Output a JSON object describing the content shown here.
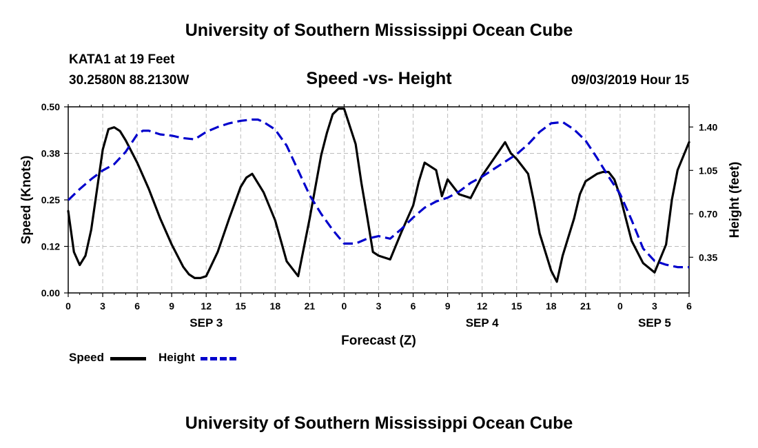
{
  "page": {
    "top_title": "University of Southern Mississippi Ocean Cube",
    "bottom_title": "University of Southern Mississippi Ocean Cube",
    "station": "KATA1 at 19 Feet",
    "location": "30.2580N 88.2130W",
    "chart_title": "Speed -vs- Height",
    "timestamp": "09/03/2019 Hour 15"
  },
  "legend": {
    "speed_label": "Speed",
    "height_label": "Height"
  },
  "colors": {
    "speed_line": "#000000",
    "height_line": "#0000cc",
    "grid": "#bbbbbb"
  },
  "chart_data": {
    "type": "line",
    "title": "Speed -vs- Height",
    "xlabel": "Forecast (Z)",
    "ylabel": "Speed (Knots)",
    "y2label": "Height (feet)",
    "xlim": [
      0,
      54
    ],
    "ylim": [
      0,
      0.5
    ],
    "y2lim": [
      0.0625,
      1.5625
    ],
    "x_ticks": [
      0,
      3,
      6,
      9,
      12,
      15,
      18,
      21,
      24,
      27,
      30,
      33,
      36,
      39,
      42,
      45,
      48,
      51,
      54
    ],
    "x_tick_labels": [
      "0",
      "3",
      "6",
      "9",
      "12",
      "15",
      "18",
      "21",
      "0",
      "3",
      "6",
      "9",
      "12",
      "15",
      "18",
      "21",
      "0",
      "3",
      "6"
    ],
    "y_ticks": [
      0,
      0.125,
      0.25,
      0.375,
      0.5
    ],
    "y_tick_labels": [
      "0.00",
      "0.12",
      "0.25",
      "0.38",
      "0.50"
    ],
    "y2_ticks": [
      0.35,
      0.7,
      1.05,
      1.4
    ],
    "y2_tick_labels": [
      "0.35",
      "0.70",
      "1.05",
      "1.40"
    ],
    "day_labels": [
      {
        "x": 12,
        "label": "SEP 3"
      },
      {
        "x": 36,
        "label": "SEP 4"
      },
      {
        "x": 51,
        "label": "SEP 5"
      }
    ],
    "series": [
      {
        "name": "Speed",
        "axis": "left",
        "style": "solid",
        "x": [
          0,
          0.5,
          1,
          1.5,
          2,
          3,
          3.5,
          4,
          4.5,
          5,
          6,
          7,
          8,
          9,
          10,
          10.5,
          11,
          11.5,
          12,
          13,
          14,
          15,
          15.5,
          16,
          17,
          18,
          18.5,
          19,
          20,
          21,
          22,
          22.5,
          23,
          23.5,
          24,
          25,
          25.5,
          26,
          26.5,
          27,
          28,
          29,
          30,
          30.5,
          31,
          32,
          32.5,
          33,
          34,
          35,
          36,
          37,
          38,
          38.5,
          39,
          40,
          40.5,
          41,
          42,
          42.5,
          43,
          44,
          44.5,
          45,
          46,
          46.5,
          47,
          47.5,
          48,
          48.5,
          49,
          50,
          51,
          52,
          52.5,
          53,
          54
        ],
        "values": [
          0.22,
          0.11,
          0.075,
          0.1,
          0.17,
          0.385,
          0.44,
          0.445,
          0.435,
          0.41,
          0.35,
          0.28,
          0.2,
          0.13,
          0.07,
          0.05,
          0.04,
          0.04,
          0.045,
          0.11,
          0.2,
          0.285,
          0.31,
          0.32,
          0.27,
          0.195,
          0.14,
          0.085,
          0.045,
          0.2,
          0.37,
          0.43,
          0.48,
          0.495,
          0.495,
          0.4,
          0.295,
          0.205,
          0.11,
          0.1,
          0.09,
          0.165,
          0.235,
          0.3,
          0.35,
          0.33,
          0.26,
          0.305,
          0.265,
          0.255,
          0.315,
          0.36,
          0.405,
          0.375,
          0.36,
          0.32,
          0.245,
          0.16,
          0.06,
          0.03,
          0.1,
          0.2,
          0.265,
          0.3,
          0.32,
          0.325,
          0.325,
          0.305,
          0.26,
          0.2,
          0.14,
          0.08,
          0.055,
          0.13,
          0.25,
          0.33,
          0.405
        ]
      },
      {
        "name": "Height",
        "axis": "right",
        "style": "dashed",
        "x": [
          0,
          1,
          2,
          3,
          4,
          5,
          6,
          6.5,
          7,
          8,
          9,
          10,
          11,
          12,
          13,
          14,
          15,
          16,
          16.5,
          17,
          18,
          19,
          20,
          21,
          22,
          23,
          24,
          25,
          26,
          27,
          28,
          29,
          30,
          31,
          32,
          33,
          34,
          35,
          36,
          37,
          38,
          39,
          40,
          41,
          42,
          43,
          44,
          45,
          46,
          47,
          48,
          49,
          50,
          51,
          52,
          53,
          54
        ],
        "values": [
          0.81,
          0.9,
          0.98,
          1.05,
          1.1,
          1.2,
          1.34,
          1.37,
          1.37,
          1.34,
          1.33,
          1.31,
          1.3,
          1.36,
          1.4,
          1.43,
          1.45,
          1.46,
          1.46,
          1.44,
          1.38,
          1.25,
          1.05,
          0.85,
          0.7,
          0.57,
          0.46,
          0.46,
          0.5,
          0.52,
          0.5,
          0.58,
          0.67,
          0.75,
          0.8,
          0.83,
          0.88,
          0.95,
          1.0,
          1.06,
          1.12,
          1.18,
          1.26,
          1.36,
          1.43,
          1.44,
          1.38,
          1.29,
          1.15,
          1.0,
          0.86,
          0.65,
          0.42,
          0.32,
          0.29,
          0.27,
          0.27
        ]
      }
    ]
  }
}
